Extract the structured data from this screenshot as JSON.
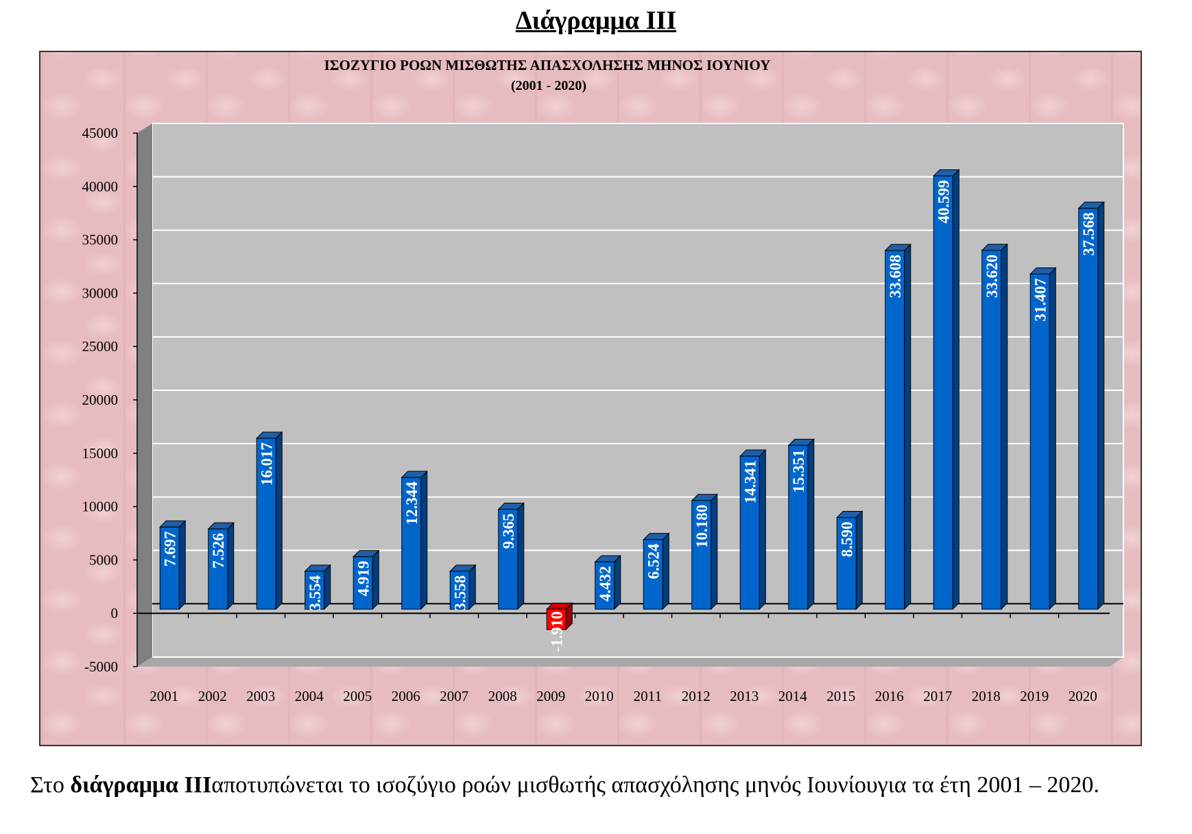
{
  "document": {
    "heading": "Διάγραμμα ΙΙΙ",
    "paragraph": {
      "part1": "Στο ",
      "bold": "διάγραμμα ΙΙΙ",
      "part2": "αποτυπώνεται το ισοζύγιο ροών μισθωτής απασχόλησης μηνός Ιουνίουγια τα έτη 2001 – 2020."
    }
  },
  "chart_data": {
    "type": "bar",
    "style": "3d-column",
    "title": "ΙΣΟΖΥΓΙΟ ΡΟΩΝ ΜΙΣΘΩΤΗΣ ΑΠΑΣΧΟΛΗΣΗΣ ΜΗΝΟΣ  ΙΟΥΝΙΟΥ",
    "subtitle": "(2001 - 2020)",
    "xlabel": "",
    "ylabel": "",
    "ylim": [
      -5000,
      45000
    ],
    "yticks": [
      45000,
      40000,
      35000,
      30000,
      25000,
      20000,
      15000,
      10000,
      5000,
      0,
      -5000
    ],
    "grid": true,
    "categories": [
      "2001",
      "2002",
      "2003",
      "2004",
      "2005",
      "2006",
      "2007",
      "2008",
      "2009",
      "2010",
      "2011",
      "2012",
      "2013",
      "2014",
      "2015",
      "2016",
      "2017",
      "2018",
      "2019",
      "2020"
    ],
    "values": [
      7697,
      7526,
      16017,
      3554,
      4919,
      12344,
      3558,
      9365,
      -1910,
      4432,
      6524,
      10180,
      14341,
      15351,
      8590,
      33608,
      40599,
      33620,
      31407,
      37568
    ],
    "data_labels": [
      "7.697",
      "7.526",
      "16.017",
      "3.554",
      "4.919",
      "12.344",
      "3.558",
      "9.365",
      "-1.910",
      "4.432",
      "6.524",
      "10.180",
      "14.341",
      "15.351",
      "8.590",
      "33.608",
      "40.599",
      "33.620",
      "31.407",
      "37.568"
    ],
    "colors": {
      "positive": "#0066cc",
      "negative": "#ff0000",
      "plot_background": "#c0c0c0",
      "chart_background": "#e9c3c7"
    }
  }
}
